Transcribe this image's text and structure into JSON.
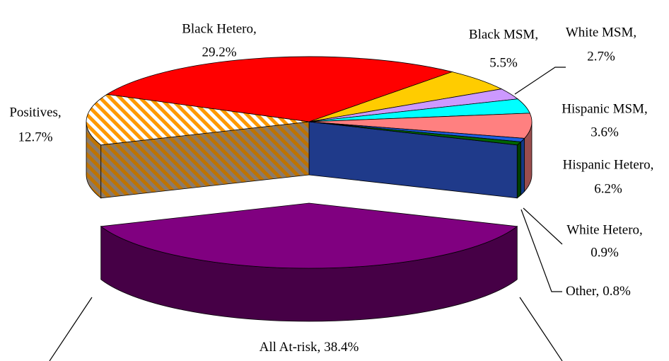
{
  "chart_data": {
    "type": "pie",
    "categories": [
      "Black Hetero,",
      "Black MSM,",
      "White MSM,",
      "Hispanic MSM,",
      "Hispanic Hetero,",
      "White Hetero,",
      "Other,",
      "All At-risk,",
      "Positives,"
    ],
    "values": [
      29.2,
      5.5,
      2.7,
      3.6,
      6.2,
      0.9,
      0.8,
      38.4,
      12.7
    ],
    "value_labels": [
      "29.2%",
      "5.5%",
      "2.7%",
      "3.6%",
      "6.2%",
      "0.9%",
      "0.8%",
      "38.4%",
      "12.7%"
    ],
    "colors": [
      "#ff0000",
      "#ffcc00",
      "#cc99ff",
      "#00ffff",
      "#ff8080",
      "#1e5fe0",
      "#006600",
      "#800080",
      "#ff9900"
    ],
    "hatched": [
      false,
      false,
      false,
      false,
      false,
      false,
      false,
      false,
      true
    ],
    "exploded": [
      false,
      false,
      false,
      false,
      false,
      false,
      false,
      true,
      false
    ]
  }
}
